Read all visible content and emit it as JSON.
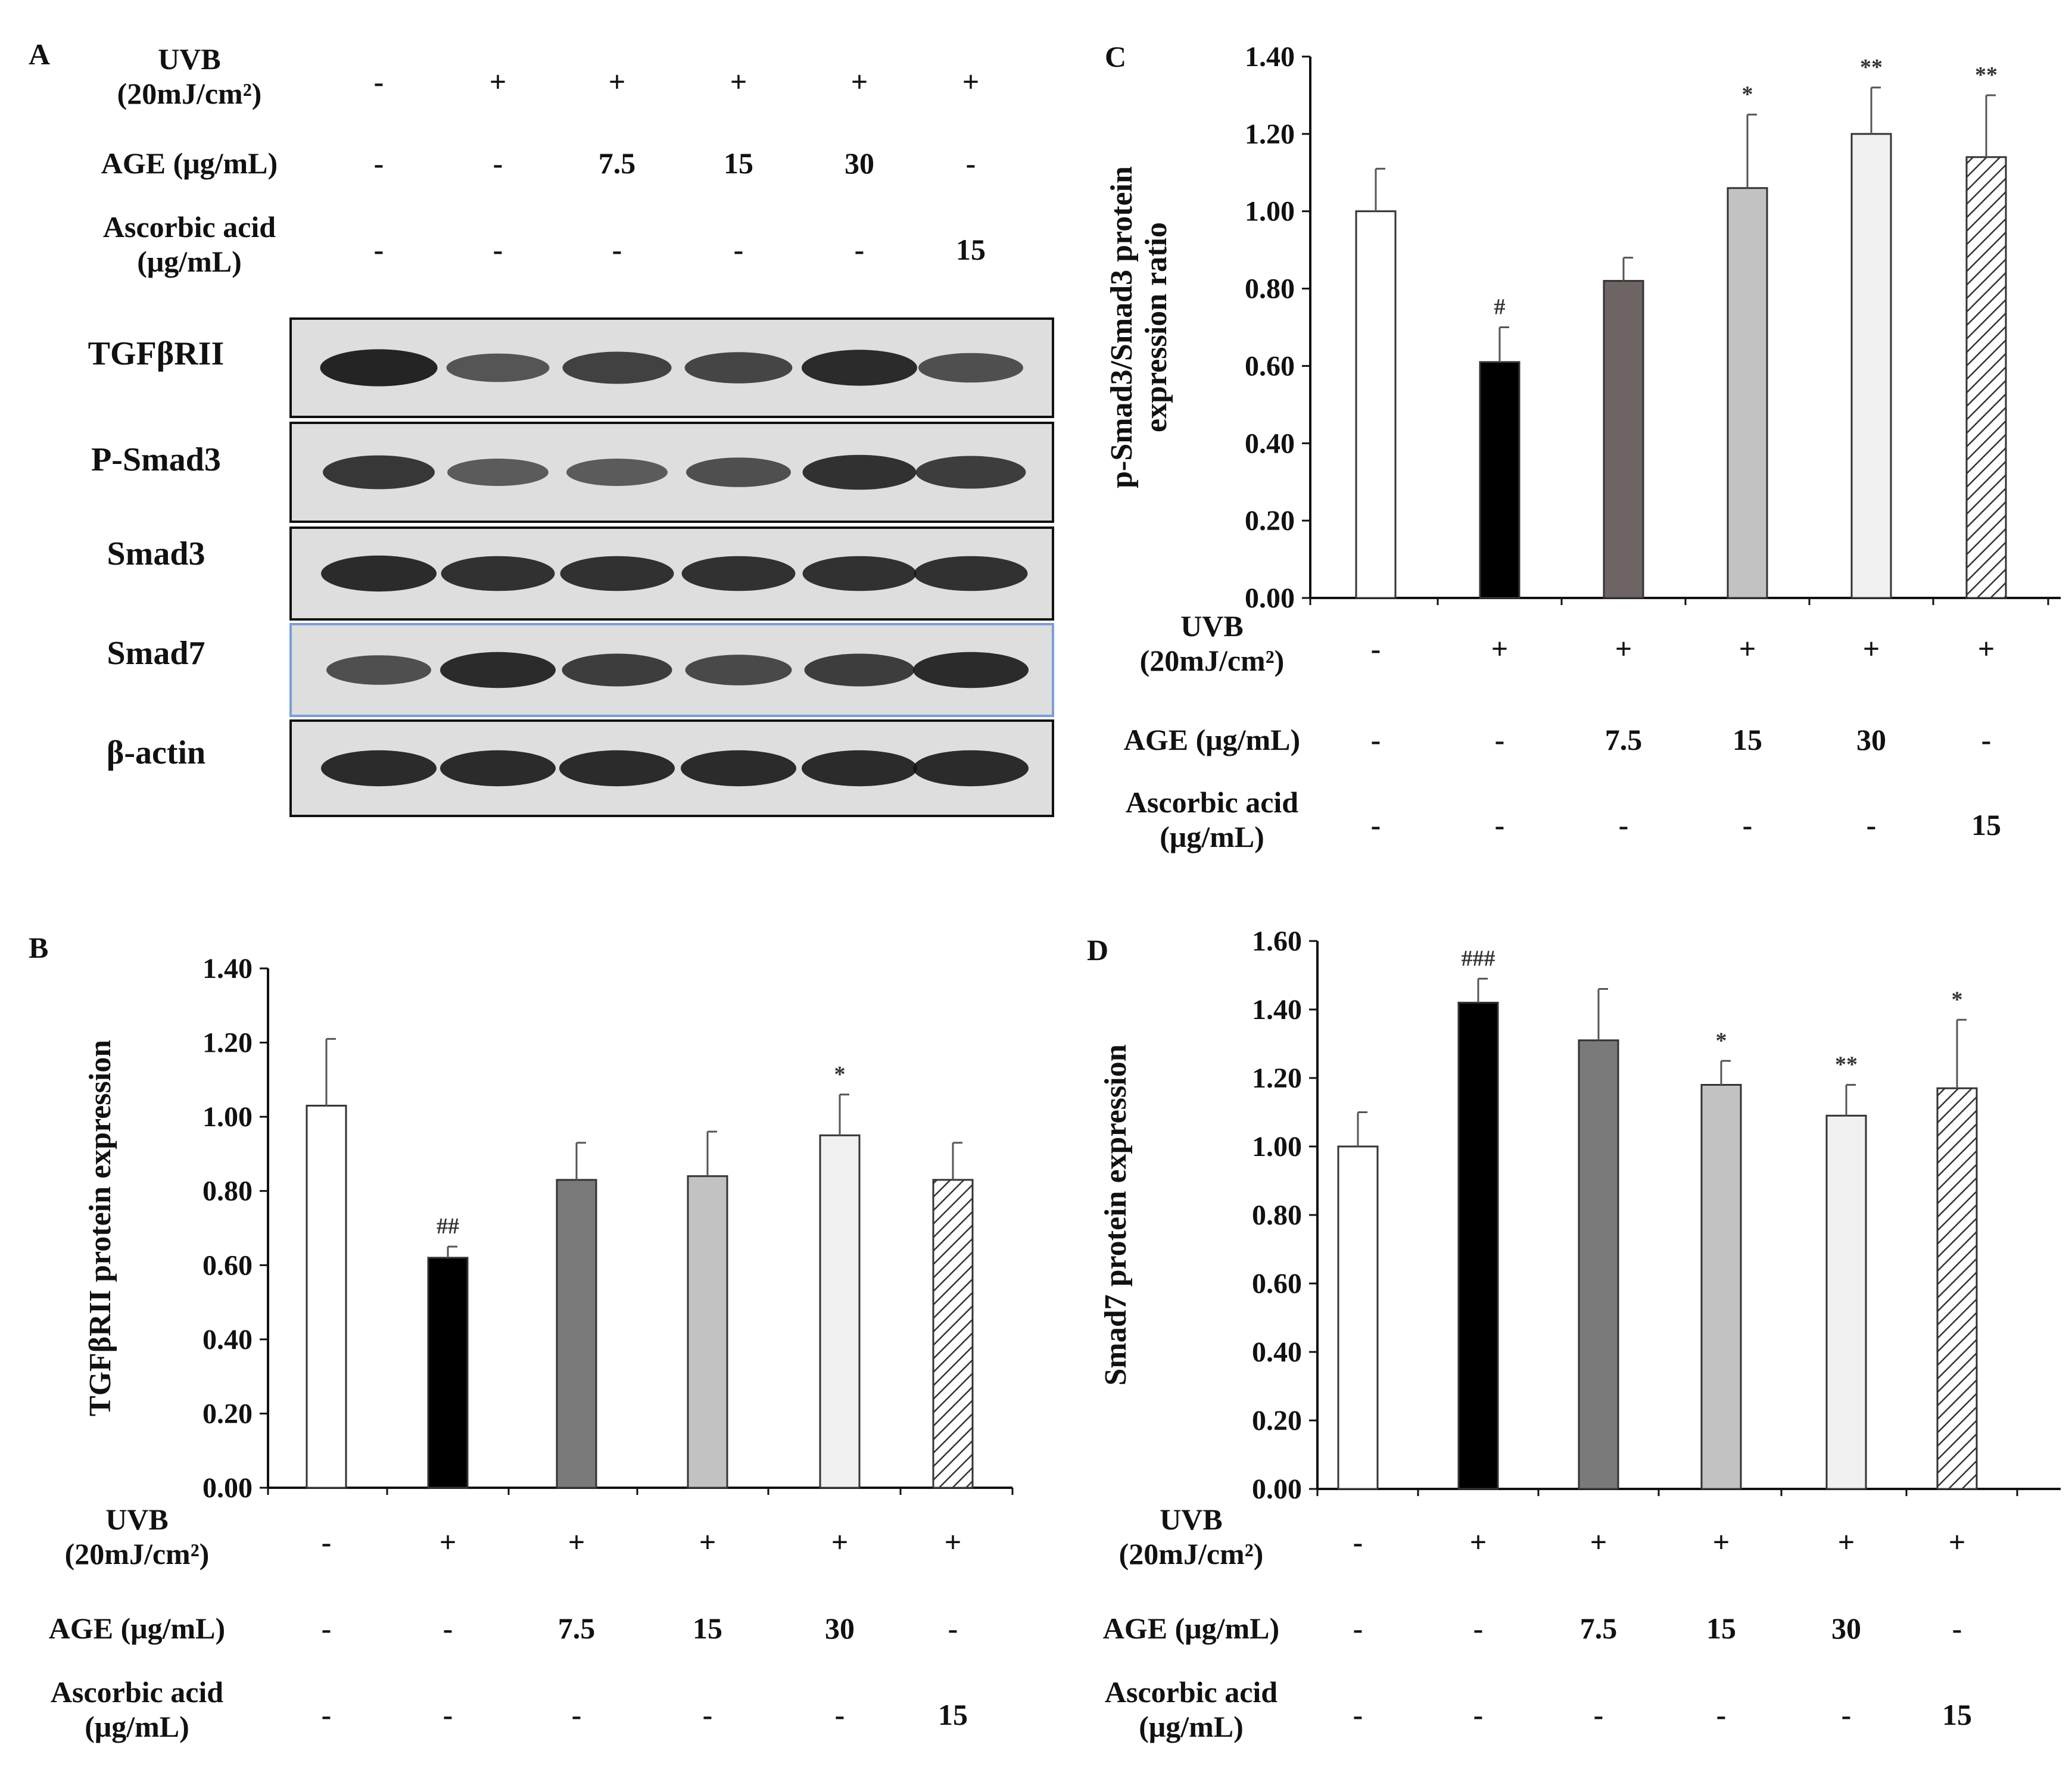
{
  "conditions": {
    "uvb_label": [
      "UVB",
      "(20mJ/cm²)"
    ],
    "age_label": "AGE (μg/mL)",
    "asc_label": [
      "Ascorbic acid",
      "(μg/mL)"
    ],
    "uvb": [
      "-",
      "+",
      "+",
      "+",
      "+",
      "+"
    ],
    "age": [
      "-",
      "-",
      "7.5",
      "15",
      "30",
      "-"
    ],
    "asc": [
      "-",
      "-",
      "-",
      "-",
      "-",
      "15"
    ]
  },
  "panel_a": {
    "label": "A",
    "blots": [
      "TGFβRII",
      "P-Smad3",
      "Smad3",
      "Smad7",
      "β-actin"
    ],
    "band_intensity": [
      [
        0.95,
        0.55,
        0.72,
        0.68,
        0.9,
        0.6
      ],
      [
        0.8,
        0.5,
        0.5,
        0.6,
        0.85,
        0.75
      ],
      [
        0.9,
        0.85,
        0.85,
        0.85,
        0.85,
        0.85
      ],
      [
        0.6,
        0.9,
        0.75,
        0.65,
        0.75,
        0.9
      ],
      [
        0.9,
        0.9,
        0.9,
        0.9,
        0.9,
        0.9
      ]
    ],
    "colors": {
      "background": "#dedede",
      "band": "#141414",
      "highlight_border": "#7a9fd6"
    }
  },
  "chart_data": [
    {
      "panel": "B",
      "type": "bar",
      "ylabel": "TGFβRII protein expression",
      "ylim": [
        0,
        1.4
      ],
      "yticks": [
        "0.00",
        "0.20",
        "0.40",
        "0.60",
        "0.80",
        "1.00",
        "1.20",
        "1.40"
      ],
      "values": [
        1.03,
        0.62,
        0.83,
        0.84,
        0.95,
        0.83
      ],
      "errors": [
        0.18,
        0.03,
        0.1,
        0.12,
        0.11,
        0.1
      ],
      "significance": [
        "",
        "##",
        "",
        "",
        "*",
        ""
      ],
      "fills": [
        "#ffffff",
        "#000000",
        "#7a7a7a",
        "#c2c2c2",
        "#f0f0f0",
        "hatch"
      ],
      "grid": false
    },
    {
      "panel": "C",
      "type": "bar",
      "ylabel": [
        "p-Smad3/Smad3 protein",
        "expression ratio"
      ],
      "ylim": [
        0,
        1.4
      ],
      "yticks": [
        "0.00",
        "0.20",
        "0.40",
        "0.60",
        "0.80",
        "1.00",
        "1.20",
        "1.40"
      ],
      "values": [
        1.0,
        0.61,
        0.82,
        1.06,
        1.2,
        1.14
      ],
      "errors": [
        0.11,
        0.09,
        0.06,
        0.19,
        0.12,
        0.16
      ],
      "significance": [
        "",
        "#",
        "",
        "*",
        "**",
        "**"
      ],
      "fills": [
        "#ffffff",
        "#000000",
        "#6e6464",
        "#c2c2c2",
        "#f0f0f0",
        "hatch"
      ],
      "grid": false
    },
    {
      "panel": "D",
      "type": "bar",
      "ylabel": "Smad7 protein expression",
      "ylim": [
        0,
        1.6
      ],
      "yticks": [
        "0.00",
        "0.20",
        "0.40",
        "0.60",
        "0.80",
        "1.00",
        "1.20",
        "1.40",
        "1.60"
      ],
      "values": [
        1.0,
        1.42,
        1.31,
        1.18,
        1.09,
        1.17
      ],
      "errors": [
        0.1,
        0.07,
        0.15,
        0.07,
        0.09,
        0.2
      ],
      "significance": [
        "",
        "###",
        "",
        "*",
        "**",
        "*"
      ],
      "fills": [
        "#ffffff",
        "#000000",
        "#7a7a7a",
        "#c2c2c2",
        "#f0f0f0",
        "hatch"
      ],
      "grid": false
    }
  ]
}
